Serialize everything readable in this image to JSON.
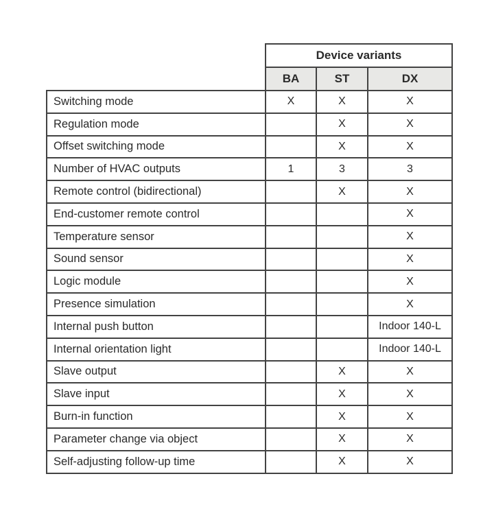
{
  "table": {
    "header": {
      "group_label": "Device variants",
      "columns": [
        "BA",
        "ST",
        "DX"
      ]
    },
    "rows": [
      {
        "label": "Switching mode",
        "values": [
          "X",
          "X",
          "X"
        ]
      },
      {
        "label": "Regulation mode",
        "values": [
          "",
          "X",
          "X"
        ]
      },
      {
        "label": "Offset switching mode",
        "values": [
          "",
          "X",
          "X"
        ]
      },
      {
        "label": "Number of HVAC outputs",
        "values": [
          "1",
          "3",
          "3"
        ]
      },
      {
        "label": "Remote control (bidirectional)",
        "values": [
          "",
          "X",
          "X"
        ]
      },
      {
        "label": "End-customer remote control",
        "values": [
          "",
          "",
          "X"
        ]
      },
      {
        "label": "Temperature sensor",
        "values": [
          "",
          "",
          "X"
        ]
      },
      {
        "label": "Sound sensor",
        "values": [
          "",
          "",
          "X"
        ]
      },
      {
        "label": "Logic module",
        "values": [
          "",
          "",
          "X"
        ]
      },
      {
        "label": "Presence simulation",
        "values": [
          "",
          "",
          "X"
        ]
      },
      {
        "label": "Internal push button",
        "values": [
          "",
          "",
          "Indoor 140-L"
        ]
      },
      {
        "label": "Internal orientation light",
        "values": [
          "",
          "",
          "Indoor 140-L"
        ]
      },
      {
        "label": "Slave output",
        "values": [
          "",
          "X",
          "X"
        ]
      },
      {
        "label": "Slave input",
        "values": [
          "",
          "X",
          "X"
        ]
      },
      {
        "label": "Burn-in function",
        "values": [
          "",
          "X",
          "X"
        ]
      },
      {
        "label": "Parameter change via object",
        "values": [
          "",
          "X",
          "X"
        ]
      },
      {
        "label": "Self-adjusting follow-up time",
        "values": [
          "",
          "X",
          "X"
        ]
      }
    ],
    "colors": {
      "header_bg": "#e8e8e6",
      "border": "#424242",
      "text": "#2a2a2a",
      "background": "#ffffff"
    }
  }
}
